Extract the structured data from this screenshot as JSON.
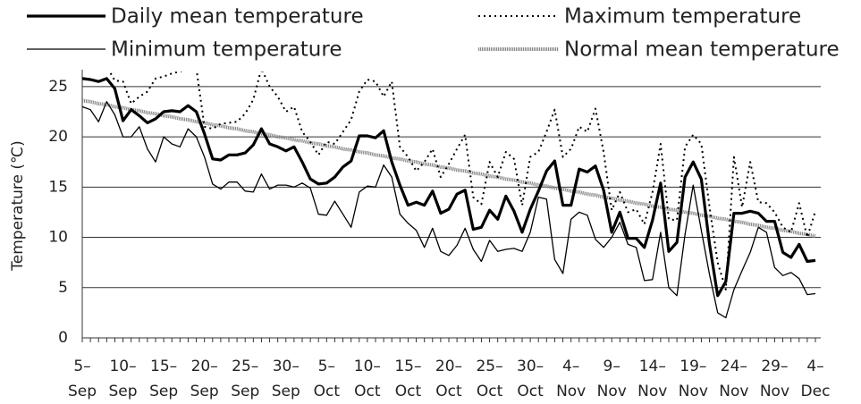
{
  "chart_data": {
    "type": "line",
    "y_label": "Temperature (℃)",
    "categories": [
      "5–\nSep",
      null,
      null,
      null,
      null,
      "10–\nSep",
      null,
      null,
      null,
      null,
      "15–\nSep",
      null,
      null,
      null,
      null,
      "20–\nSep",
      null,
      null,
      null,
      null,
      "25–\nSep",
      null,
      null,
      null,
      null,
      "30–\nSep",
      null,
      null,
      null,
      null,
      "5–\nOct",
      null,
      null,
      null,
      null,
      "10–\nOct",
      null,
      null,
      null,
      null,
      "15–\nOct",
      null,
      null,
      null,
      null,
      "20–\nOct",
      null,
      null,
      null,
      null,
      "25–\nOct",
      null,
      null,
      null,
      null,
      "30–\nOct",
      null,
      null,
      null,
      null,
      "4–\nNov",
      null,
      null,
      null,
      null,
      "9–\nNov",
      null,
      null,
      null,
      null,
      "14–\nNov",
      null,
      null,
      null,
      null,
      "19–\nNov",
      null,
      null,
      null,
      null,
      "24–\nNov",
      null,
      null,
      null,
      null,
      "29–\nNov",
      null,
      null,
      null,
      null,
      "4–\nDec"
    ],
    "ylim": [
      0,
      26.5
    ],
    "yticks": [
      0,
      5,
      10,
      15,
      20,
      25
    ],
    "grid": true,
    "series": [
      {
        "name": "Daily mean temperature",
        "color": "#000000",
        "style": "thick",
        "values": [
          25.8,
          25.7,
          25.5,
          25.8,
          24.8,
          21.6,
          22.7,
          22.1,
          21.4,
          21.8,
          22.5,
          22.6,
          22.5,
          23.1,
          22.5,
          20.3,
          17.8,
          17.7,
          18.2,
          18.2,
          18.4,
          19.2,
          20.8,
          19.3,
          19.0,
          18.6,
          19.0,
          17.5,
          15.8,
          15.3,
          15.4,
          16.0,
          17.0,
          17.6,
          20.1,
          20.1,
          19.9,
          20.6,
          17.5,
          15.2,
          13.2,
          13.5,
          13.2,
          14.6,
          12.4,
          12.8,
          14.3,
          14.7,
          10.8,
          11.0,
          12.7,
          11.8,
          14.1,
          12.6,
          10.5,
          12.8,
          14.6,
          16.6,
          17.6,
          13.2,
          13.2,
          16.8,
          16.5,
          17.1,
          14.7,
          10.5,
          12.5,
          9.9,
          9.9,
          9.0,
          11.7,
          15.4,
          8.6,
          9.5,
          16.0,
          17.5,
          15.8,
          9.3,
          4.2,
          5.6,
          12.4,
          12.4,
          12.6,
          12.4,
          11.6,
          11.6,
          8.5,
          8.0,
          9.3,
          7.6,
          7.7
        ]
      },
      {
        "name": "Maximum temperature",
        "color": "#000000",
        "style": "dotted",
        "values": [
          27,
          27,
          27,
          27,
          25.6,
          25.5,
          23.3,
          24.0,
          24.5,
          25.8,
          26.0,
          26.3,
          26.5,
          26.8,
          26.8,
          21.0,
          20.8,
          21.3,
          21.4,
          21.5,
          22.3,
          23.7,
          26.8,
          25.0,
          24.0,
          22.5,
          23.0,
          20.5,
          19.5,
          18.2,
          19.5,
          19.3,
          20.5,
          21.7,
          24.5,
          25.7,
          25.5,
          24.0,
          25.5,
          19.0,
          18.0,
          16.6,
          17.5,
          18.8,
          16.0,
          17.3,
          18.8,
          20.2,
          14.0,
          13.3,
          17.5,
          16.0,
          18.5,
          17.8,
          13.2,
          18.0,
          18.5,
          20.5,
          22.7,
          18.0,
          18.8,
          21.0,
          20.5,
          22.8,
          18.5,
          12.7,
          14.5,
          12.5,
          12.8,
          11.3,
          14.5,
          19.3,
          11.8,
          11.7,
          19.0,
          20.2,
          19.3,
          13.0,
          7.5,
          4.8,
          18.0,
          13.0,
          17.5,
          13.5,
          13.4,
          12.5,
          11.0,
          10.5,
          13.4,
          10.0,
          12.6
        ]
      },
      {
        "name": "Minimum temperature",
        "color": "#000000",
        "style": "thin",
        "values": [
          23.0,
          22.7,
          21.5,
          23.5,
          22.2,
          20.0,
          20.0,
          21.0,
          18.8,
          17.5,
          20.0,
          19.3,
          19.0,
          20.8,
          20.0,
          18.0,
          15.3,
          14.8,
          15.5,
          15.5,
          14.6,
          14.5,
          16.3,
          14.8,
          15.2,
          15.2,
          15.0,
          15.4,
          14.9,
          12.3,
          12.2,
          13.6,
          12.3,
          11.0,
          14.5,
          15.1,
          15.0,
          17.2,
          16.0,
          12.3,
          11.4,
          10.7,
          9.0,
          10.9,
          8.6,
          8.2,
          9.2,
          10.9,
          8.8,
          7.6,
          9.7,
          8.6,
          8.8,
          8.9,
          8.6,
          10.5,
          14.0,
          13.8,
          7.8,
          6.4,
          11.8,
          12.5,
          12.2,
          9.8,
          9.0,
          10.0,
          11.5,
          9.3,
          9.0,
          5.7,
          5.8,
          10.5,
          5.0,
          4.2,
          10.3,
          15.2,
          10.7,
          6.3,
          2.5,
          2.0,
          4.8,
          6.7,
          8.5,
          11.0,
          10.5,
          7.0,
          6.2,
          6.5,
          5.9,
          4.3,
          4.4
        ]
      },
      {
        "name": "Normal mean temperature",
        "color": "#8a8a8a",
        "style": "thick-dashed",
        "values": [
          23.6,
          23.5,
          23.3,
          23.2,
          23.0,
          22.9,
          22.7,
          22.6,
          22.4,
          22.3,
          22.1,
          22.0,
          21.8,
          21.7,
          21.5,
          21.4,
          21.2,
          21.1,
          20.9,
          20.8,
          20.6,
          20.5,
          20.3,
          20.2,
          20.0,
          19.9,
          19.7,
          19.6,
          19.4,
          19.3,
          19.1,
          19.0,
          18.8,
          18.7,
          18.5,
          18.4,
          18.2,
          18.1,
          17.9,
          17.8,
          17.6,
          17.5,
          17.3,
          17.2,
          17.0,
          16.9,
          16.7,
          16.6,
          16.4,
          16.3,
          16.1,
          16.0,
          15.8,
          15.7,
          15.5,
          15.4,
          15.2,
          15.1,
          14.9,
          14.8,
          14.6,
          14.5,
          14.3,
          14.2,
          14.0,
          13.9,
          13.7,
          13.6,
          13.4,
          13.3,
          13.1,
          13.0,
          12.8,
          12.7,
          12.5,
          12.4,
          12.2,
          12.1,
          11.9,
          11.8,
          11.6,
          11.5,
          11.3,
          11.2,
          11.0,
          10.9,
          10.7,
          10.6,
          10.4,
          10.3,
          10.1
        ]
      }
    ]
  }
}
